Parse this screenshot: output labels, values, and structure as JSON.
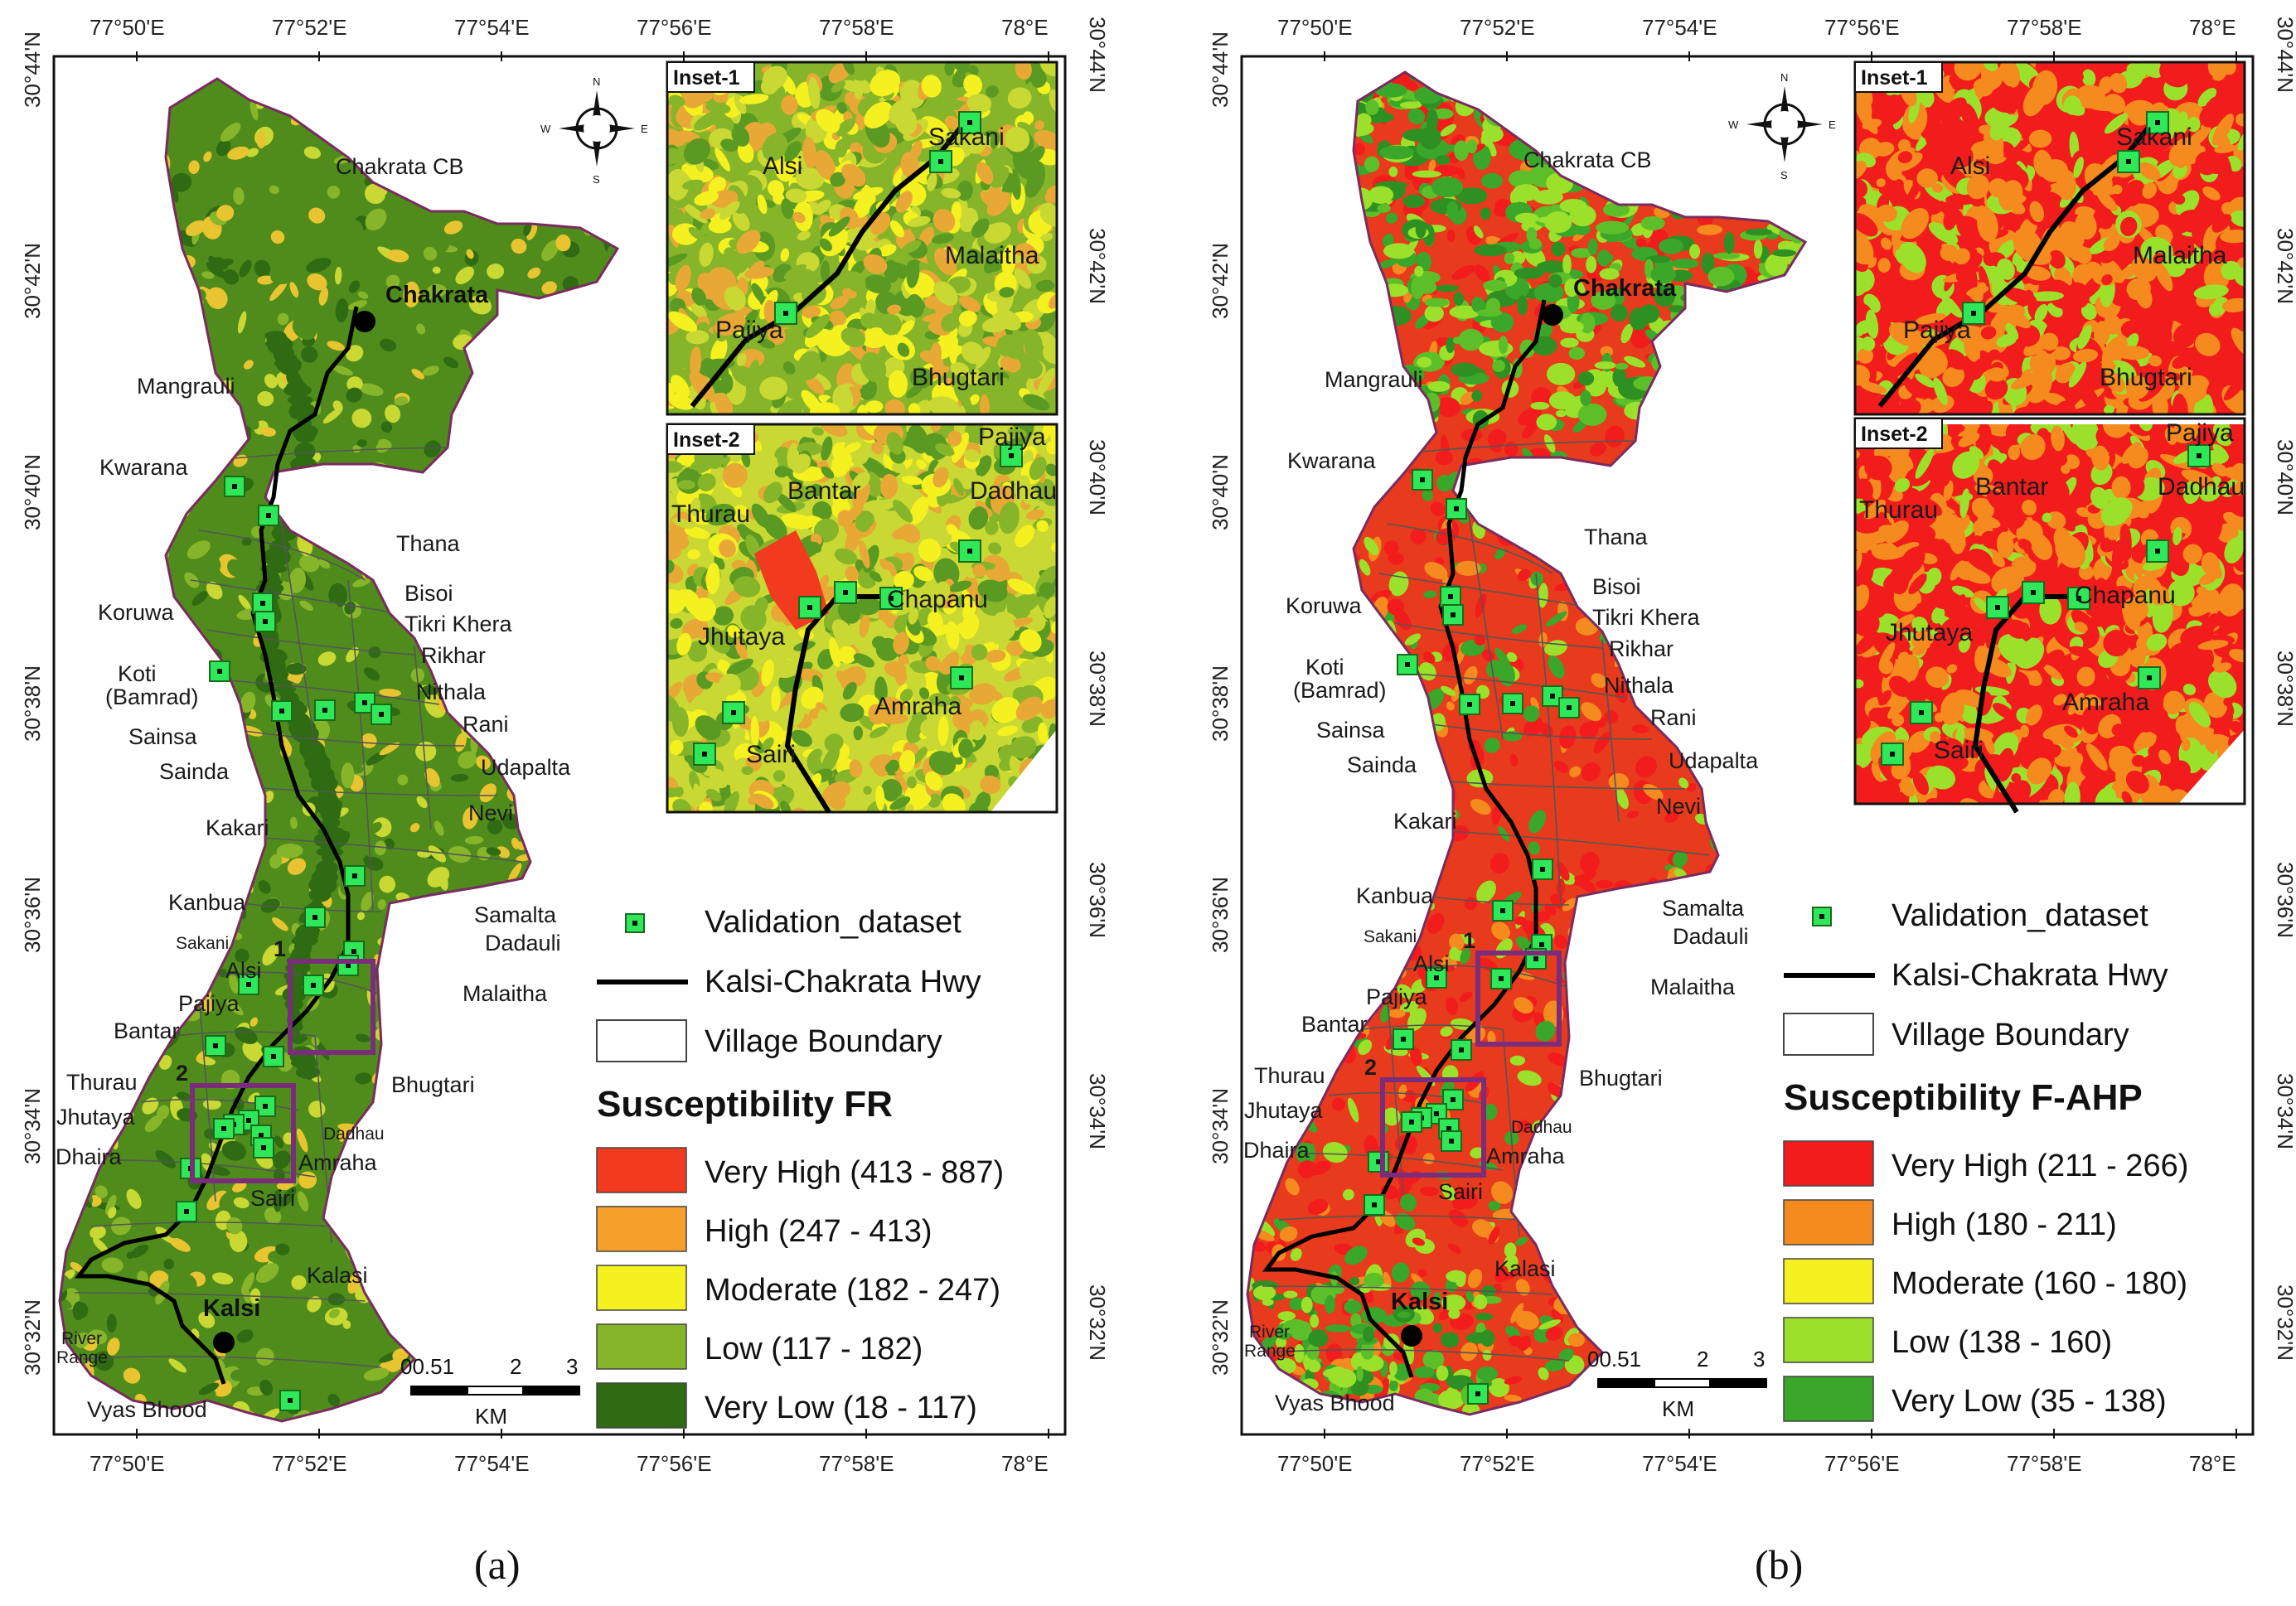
{
  "panels": [
    {
      "id": "a",
      "caption": "(a)",
      "legend_title": "Susceptibility FR",
      "classes": [
        {
          "label": "Very High (413 - 887)",
          "color": "#f23a1e"
        },
        {
          "label": "High (247 - 413)",
          "color": "#f5a02a"
        },
        {
          "label": "Moderate (182 - 247)",
          "color": "#f5f020"
        },
        {
          "label": "Low (117 - 182)",
          "color": "#86b52a"
        },
        {
          "label": "Very Low (18 - 117)",
          "color": "#2e6b12"
        }
      ],
      "palette": [
        "#2e6b12",
        "#4f8c1c",
        "#86b52a",
        "#c9d832",
        "#e8c430"
      ],
      "inset_palette": [
        "#5a9a22",
        "#86b52a",
        "#c9d832",
        "#e8a835",
        "#f5f020"
      ]
    },
    {
      "id": "b",
      "caption": "(b)",
      "legend_title": "Susceptibility F-AHP",
      "classes": [
        {
          "label": "Very High (211 - 266)",
          "color": "#f21c1c"
        },
        {
          "label": "High (180 - 211)",
          "color": "#f58a1e"
        },
        {
          "label": "Moderate (160 - 180)",
          "color": "#f5f020"
        },
        {
          "label": "Low (138 - 160)",
          "color": "#9be02a"
        },
        {
          "label": "Very Low (35 - 138)",
          "color": "#3aa62a"
        }
      ],
      "palette": [
        "#3aa62a",
        "#9be02a",
        "#f58a1e",
        "#f21c1c",
        "#f21c1c"
      ],
      "inset_palette": [
        "#f21c1c",
        "#f21c1c",
        "#f58a1e",
        "#f58a1e",
        "#9be02a"
      ]
    }
  ],
  "legend_common": {
    "validation": "Validation_dataset",
    "highway": "Kalsi-Chakrata Hwy",
    "boundary": "Village Boundary"
  },
  "axes": {
    "top_ticks": [
      "77°50'E",
      "77°52'E",
      "77°54'E",
      "77°56'E",
      "77°58'E",
      "78°E"
    ],
    "bottom_ticks": [
      "77°50'E",
      "77°52'E",
      "77°54'E",
      "77°56'E",
      "77°58'E",
      "78°E"
    ],
    "lat_ticks": [
      "30°44'N",
      "30°42'N",
      "30°40'N",
      "30°38'N",
      "30°36'N",
      "30°34'N",
      "30°32'N"
    ]
  },
  "compass": {
    "n": "N",
    "s": "S",
    "e": "E",
    "w": "W"
  },
  "scale_bar": {
    "labels": [
      "00.51",
      "2",
      "3"
    ],
    "unit": "KM"
  },
  "insets": {
    "inset1": {
      "title": "Inset-1",
      "labels": [
        "Alsi",
        "Sakani",
        "Malaitha",
        "Pajiya",
        "Bhugtari"
      ]
    },
    "inset2": {
      "title": "Inset-2",
      "labels": [
        "Pajiya",
        "Bantar",
        "Dadhau",
        "Thurau",
        "Chapanu",
        "Jhutaya",
        "Amraha",
        "Sairi"
      ]
    }
  },
  "towns": {
    "chakrata": "Chakrata",
    "kalsi": "Kalsi"
  },
  "villages": {
    "chakrata_cb": "Chakrata CB",
    "mangrauli": "Mangrauli",
    "kwarana": "Kwarana",
    "thana": "Thana",
    "bisoi": "Bisoi",
    "tikri_khera": "Tikri Khera",
    "koruwa": "Koruwa",
    "rikhar": "Rikhar",
    "koti": "Koti",
    "bamrad": "(Bamrad)",
    "nithala": "Nithala",
    "rani": "Rani",
    "sainsa": "Sainsa",
    "sainda": "Sainda",
    "udapalta": "Udapalta",
    "nevi": "Nevi",
    "kakari": "Kakari",
    "kanbua": "Kanbua",
    "samalta": "Samalta",
    "dadauli": "Dadauli",
    "sakani": "Sakani",
    "alsi": "Alsi",
    "malaitha": "Malaitha",
    "pajiya": "Pajiya",
    "bantar": "Bantar",
    "thurau": "Thurau",
    "bhugtari": "Bhugtari",
    "jhutaya": "Jhutaya",
    "dadhau": "Dadhau",
    "dhaira": "Dhaira",
    "amraha": "Amraha",
    "sairi": "Sairi",
    "kalasi": "Kalasi",
    "river": "River",
    "range": "Range",
    "vyas_bhood": "Vyas Bhood"
  },
  "box_labels": [
    "1",
    "2"
  ]
}
